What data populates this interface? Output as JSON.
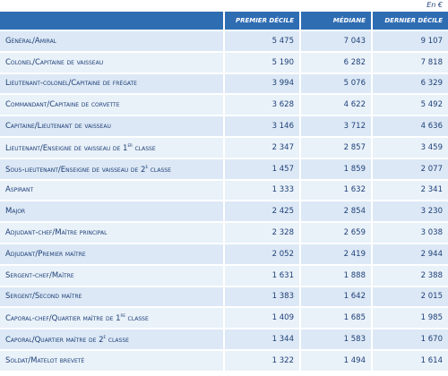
{
  "unit": "En €",
  "table": {
    "headers": [
      "PREMIER DÉCILE",
      "MÉDIANE",
      "DERNIER DÉCILE"
    ],
    "rows": [
      {
        "label": [
          {
            "text": "Général/Amiral"
          }
        ],
        "values": [
          "5 475",
          "7 043",
          "9 107"
        ]
      },
      {
        "label": [
          {
            "text": "Colonel/Capitaine de vaisseau"
          }
        ],
        "values": [
          "5 190",
          "6 282",
          "7 818"
        ]
      },
      {
        "label": [
          {
            "text": "Lieutenant-colonel/Capitaine de frégate"
          }
        ],
        "values": [
          "3 994",
          "5 076",
          "6 329"
        ]
      },
      {
        "label": [
          {
            "text": "Commandant/Capitaine de corvette"
          }
        ],
        "values": [
          "3 628",
          "4 622",
          "5 492"
        ]
      },
      {
        "label": [
          {
            "text": "Capitaine/Lieutenant de vaisseau"
          }
        ],
        "values": [
          "3 146",
          "3 712",
          "4 636"
        ]
      },
      {
        "label": [
          {
            "text": "Lieutenant/Enseigne de vaisseau de 1"
          },
          {
            "text": "er",
            "sup": true
          },
          {
            "text": " classe"
          }
        ],
        "values": [
          "2 347",
          "2 857",
          "3 459"
        ]
      },
      {
        "label": [
          {
            "text": "Sous-lieutenant/Enseigne de vaisseau de 2"
          },
          {
            "text": "e",
            "sup": true
          },
          {
            "text": " classe"
          }
        ],
        "values": [
          "1 457",
          "1 859",
          "2 077"
        ]
      },
      {
        "label": [
          {
            "text": "Aspirant"
          }
        ],
        "values": [
          "1 333",
          "1 632",
          "2 341"
        ]
      },
      {
        "label": [
          {
            "text": "Major"
          }
        ],
        "values": [
          "2 425",
          "2 854",
          "3 230"
        ]
      },
      {
        "label": [
          {
            "text": "Adjudant-chef/Maître principal"
          }
        ],
        "values": [
          "2 328",
          "2 659",
          "3 038"
        ]
      },
      {
        "label": [
          {
            "text": "Adjudant/Premier maître"
          }
        ],
        "values": [
          "2 052",
          "2 419",
          "2 944"
        ]
      },
      {
        "label": [
          {
            "text": "Sergent-chef/Maître"
          }
        ],
        "values": [
          "1 631",
          "1 888",
          "2 388"
        ]
      },
      {
        "label": [
          {
            "text": "Sergent/Second maître"
          }
        ],
        "values": [
          "1 383",
          "1 642",
          "2 015"
        ]
      },
      {
        "label": [
          {
            "text": "Caporal-chef/Quartier maître de 1"
          },
          {
            "text": "re",
            "sup": true
          },
          {
            "text": " classe"
          }
        ],
        "values": [
          "1 409",
          "1 685",
          "1 985"
        ]
      },
      {
        "label": [
          {
            "text": "Caporal/Quartier maître de 2"
          },
          {
            "text": "e",
            "sup": true
          },
          {
            "text": " classe"
          }
        ],
        "values": [
          "1 344",
          "1 583",
          "1 670"
        ]
      },
      {
        "label": [
          {
            "text": "Soldat/Matelot breveté"
          }
        ],
        "values": [
          "1 322",
          "1 494",
          "1 614"
        ]
      }
    ]
  }
}
